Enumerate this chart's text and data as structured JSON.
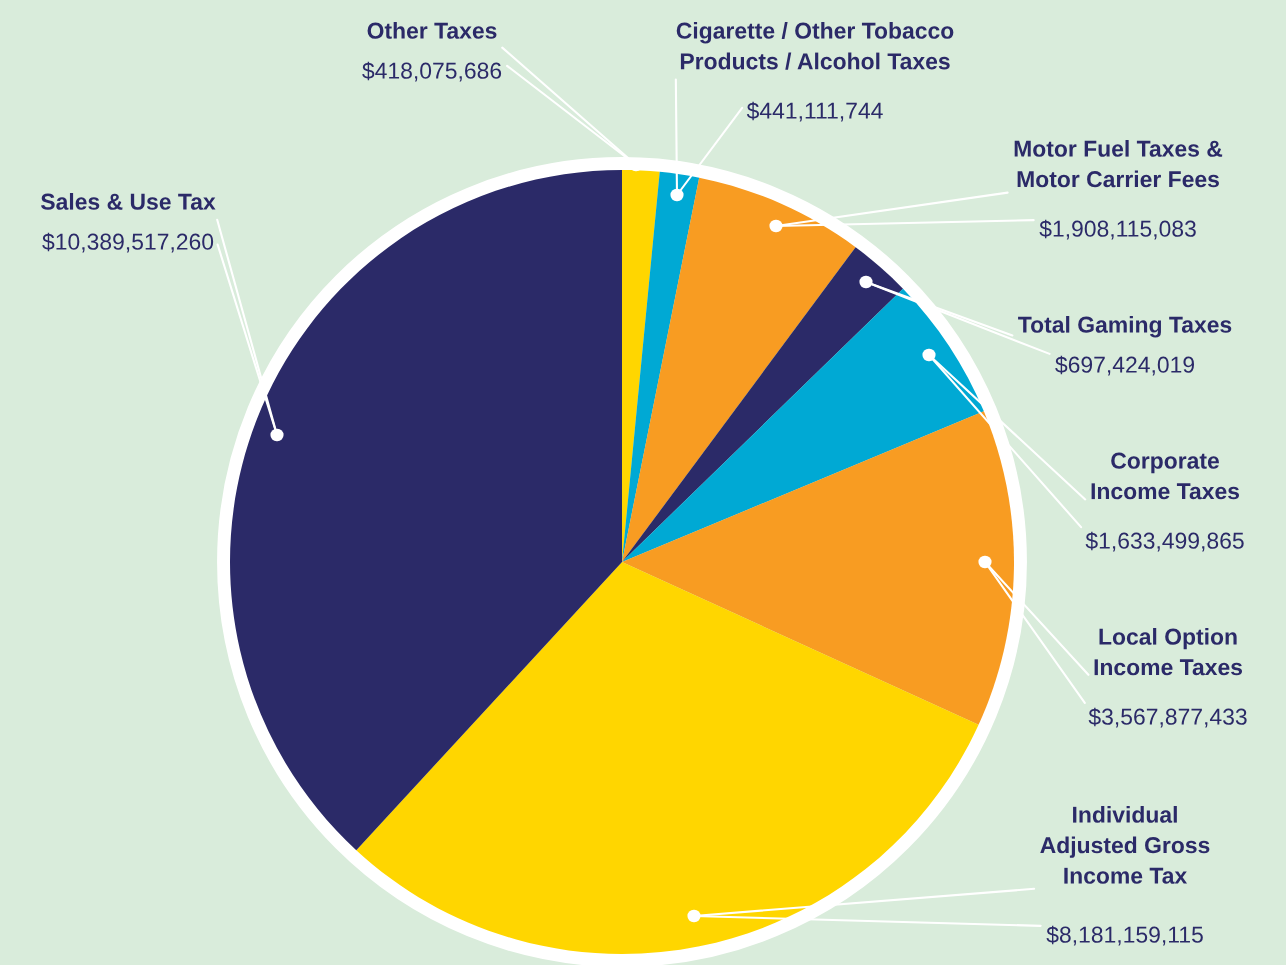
{
  "chart_data": {
    "type": "pie",
    "categories": [
      "Other Taxes",
      "Cigarette / Other Tobacco\nProducts / Alcohol Taxes",
      "Motor Fuel Taxes &\nMotor Carrier Fees",
      "Total Gaming Taxes",
      "Corporate\nIncome Taxes",
      "Local Option\nIncome Taxes",
      "Individual\nAdjusted Gross\nIncome Tax",
      "Sales & Use Tax"
    ],
    "values": [
      418075686,
      441111744,
      1908115083,
      697424019,
      1633499865,
      3567877433,
      8181159115,
      10389517260
    ],
    "value_labels": [
      "$418,075,686",
      "$441,111,744",
      "$1,908,115,083",
      "$697,424,019",
      "$1,633,499,865",
      "$3,567,877,433",
      "$8,181,159,115",
      "$10,389,517,260"
    ],
    "colors": [
      "#ffd600",
      "#00a9d4",
      "#f89c22",
      "#2b2a68",
      "#00a9d4",
      "#f89c22",
      "#ffd600",
      "#2b2a68"
    ],
    "legend": false
  }
}
